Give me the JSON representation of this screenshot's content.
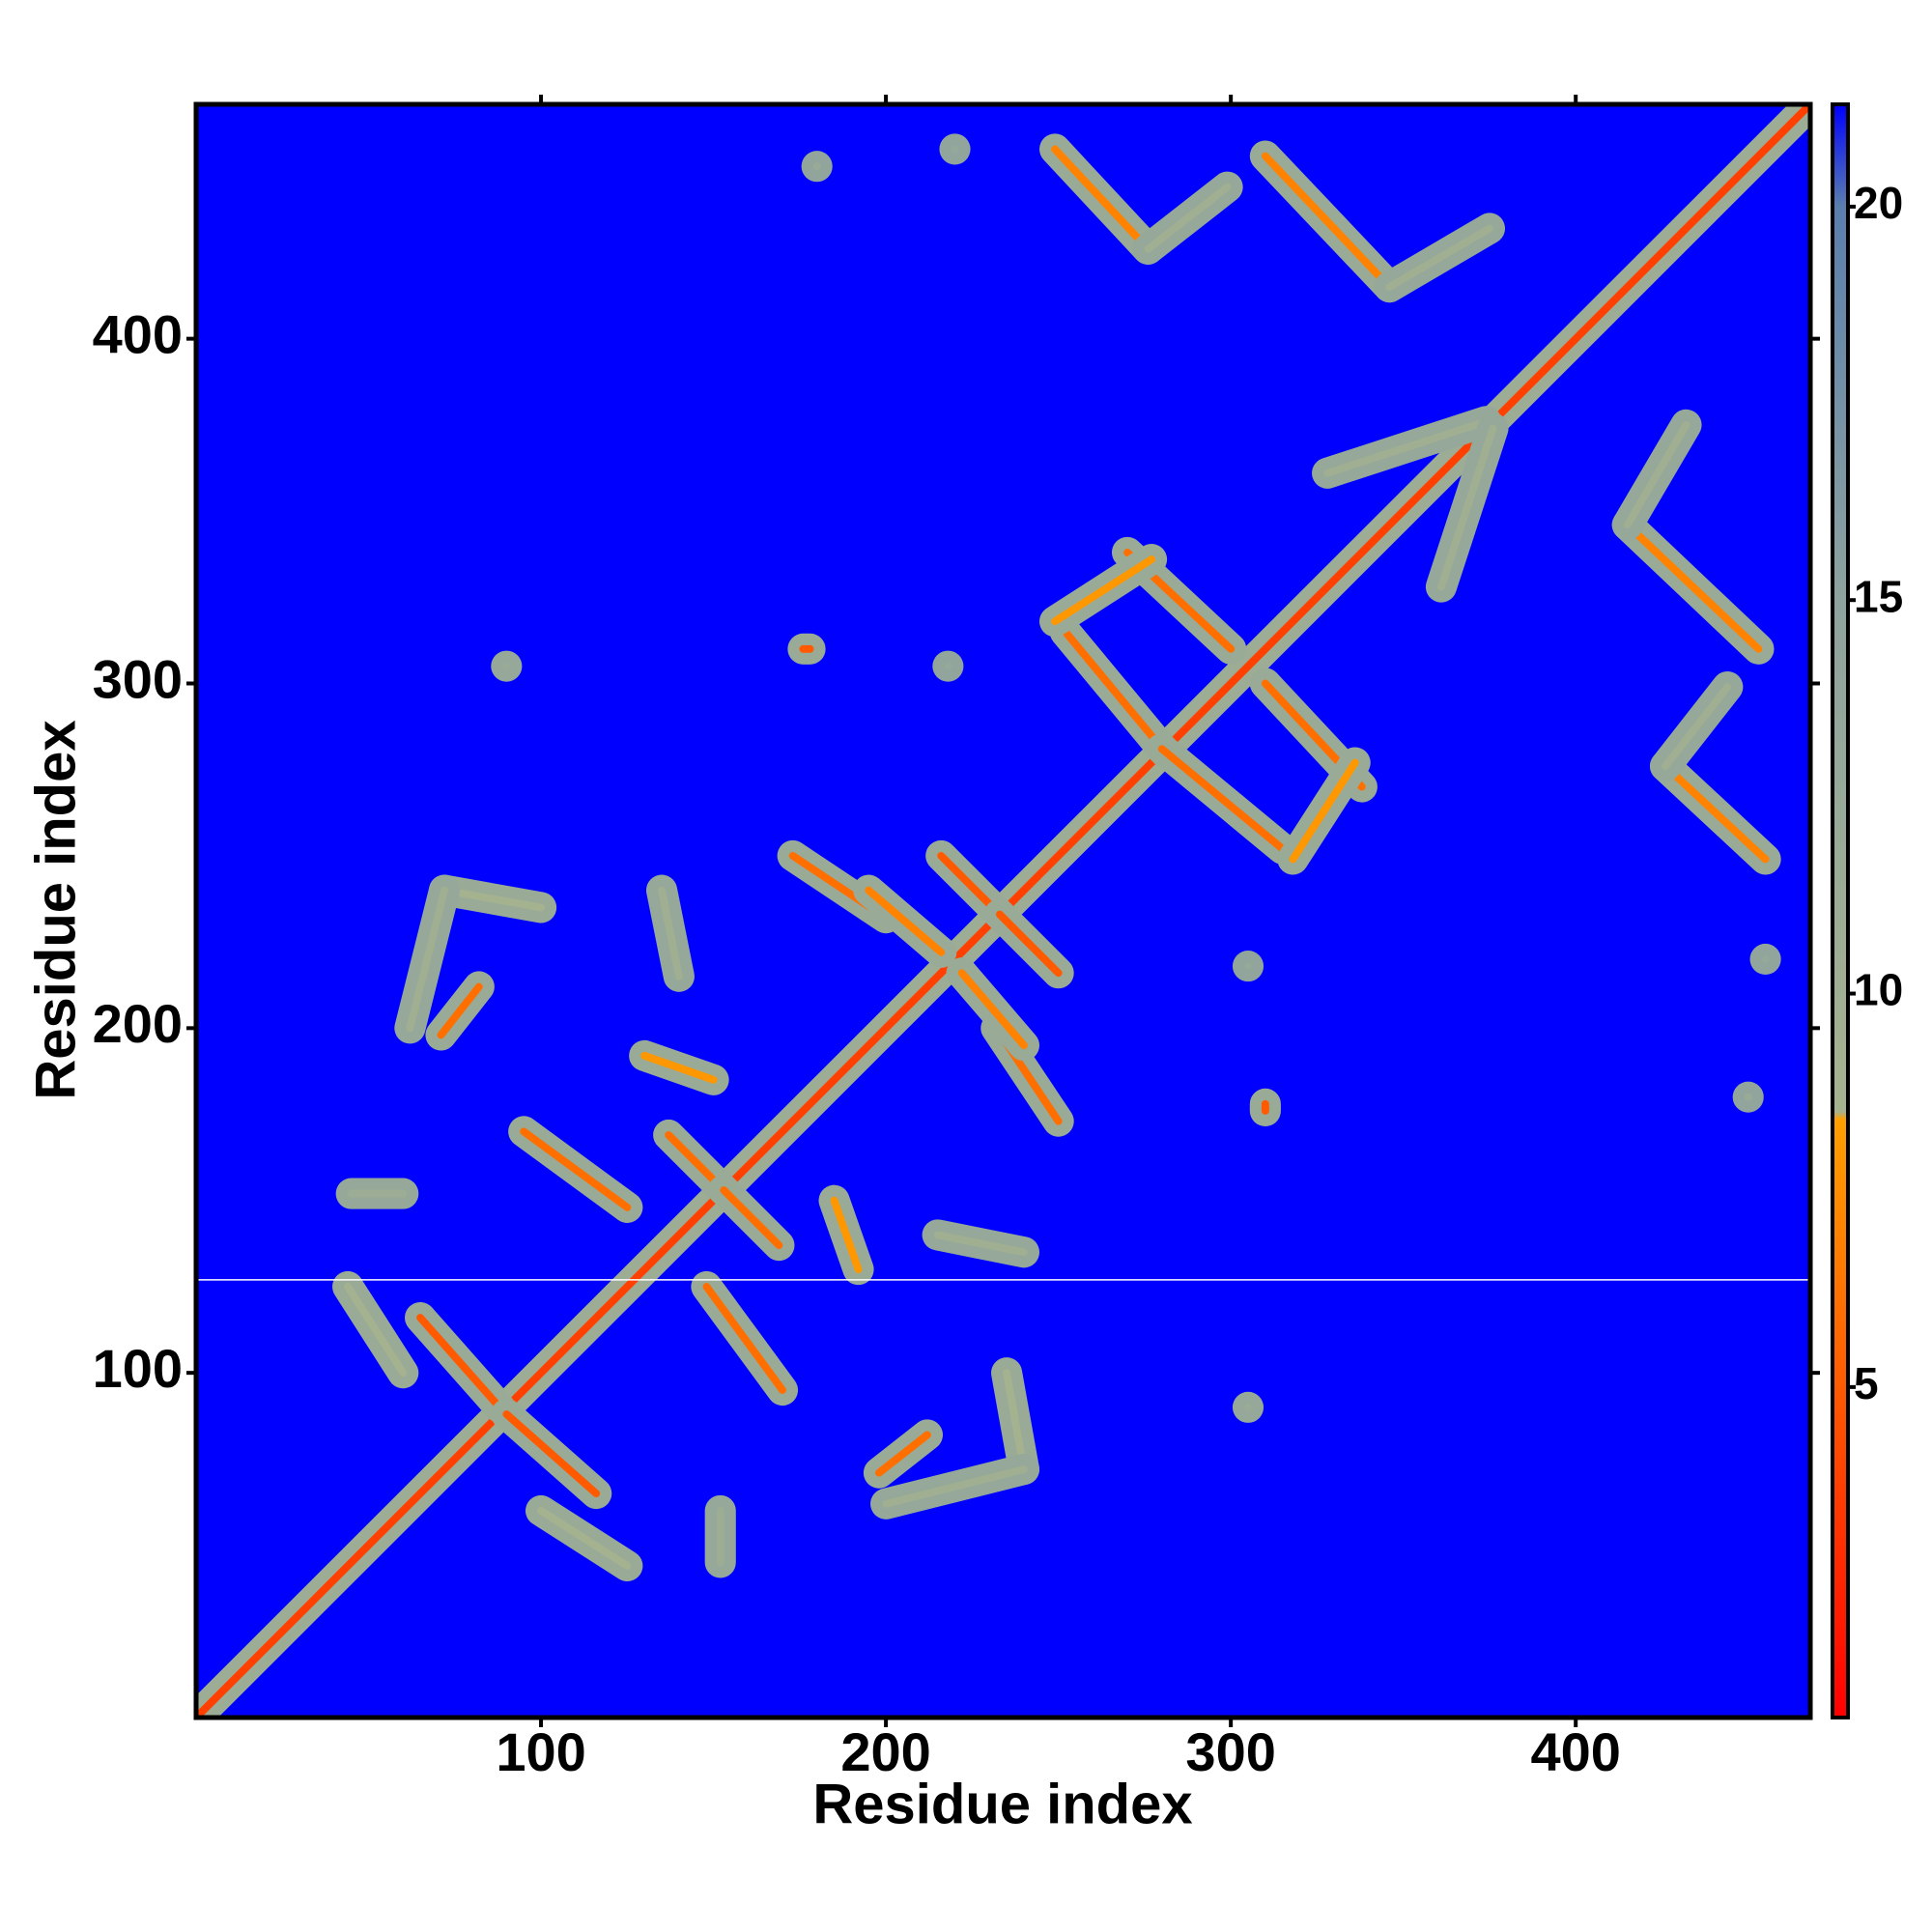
{
  "chart_data": {
    "type": "heatmap",
    "x_label": "Residue index",
    "y_label": "Residue index",
    "xlim": [
      0,
      468
    ],
    "ylim": [
      0,
      468
    ],
    "xticks": [
      100,
      200,
      300,
      400
    ],
    "yticks": [
      100,
      200,
      300,
      400
    ],
    "symmetric": true,
    "background_color": "#0000ff",
    "blank_rows": [
      127
    ],
    "colorbar": {
      "lim": [
        0.8,
        21.3
      ],
      "ticks": [
        5,
        10,
        15,
        20
      ],
      "stops": [
        {
          "value": 0.8,
          "color": "#ff0000"
        },
        {
          "value": 5,
          "color": "#ff5a00"
        },
        {
          "value": 8.4,
          "color": "#ffa000"
        },
        {
          "value": 8.5,
          "color": "#a6b38f"
        },
        {
          "value": 15,
          "color": "#8ea39e"
        },
        {
          "value": 20,
          "color": "#5a7fae"
        },
        {
          "value": 21.3,
          "color": "#0000ff"
        }
      ]
    },
    "contacts": [
      {
        "x": [
          1,
          468
        ],
        "y": [
          1,
          468
        ],
        "value": 3.8,
        "halo": 11
      },
      {
        "x": [
          65,
          88
        ],
        "y": [
          116,
          90
        ],
        "value": 5,
        "halo": 12
      },
      {
        "x": [
          44,
          60
        ],
        "y": [
          125,
          100
        ],
        "value": 9,
        "halo": 12
      },
      {
        "x": [
          71,
          82
        ],
        "y": [
          198,
          212
        ],
        "value": 6,
        "halo": 12
      },
      {
        "x": [
          72,
          100
        ],
        "y": [
          240,
          235
        ],
        "value": 9,
        "halo": 12
      },
      {
        "x": [
          62,
          72
        ],
        "y": [
          200,
          240
        ],
        "value": 10,
        "halo": 13
      },
      {
        "x": [
          95,
          125
        ],
        "y": [
          170,
          148
        ],
        "value": 6,
        "halo": 12
      },
      {
        "x": [
          45,
          60
        ],
        "y": [
          152,
          152
        ],
        "value": 11,
        "halo": 13
      },
      {
        "x": [
          137,
          153
        ],
        "y": [
          169,
          153
        ],
        "value": 6,
        "halo": 12
      },
      {
        "x": [
          135,
          140
        ],
        "y": [
          240,
          215
        ],
        "value": 10,
        "halo": 13
      },
      {
        "x": [
          130,
          150
        ],
        "y": [
          192,
          185
        ],
        "value": 8,
        "halo": 12
      },
      {
        "x": [
          173,
          200
        ],
        "y": [
          250,
          232
        ],
        "value": 6,
        "halo": 12
      },
      {
        "x": [
          195,
          216
        ],
        "y": [
          240,
          222
        ],
        "value": 7,
        "halo": 12
      },
      {
        "x": [
          216,
          233
        ],
        "y": [
          250,
          233
        ],
        "value": 5,
        "halo": 12
      },
      {
        "x": [
          176,
          178
        ],
        "y": [
          310,
          310
        ],
        "value": 5,
        "halo": 12
      },
      {
        "x": [
          90,
          90
        ],
        "y": [
          305,
          305
        ],
        "value": 12,
        "halo": 13
      },
      {
        "x": [
          218,
          218
        ],
        "y": [
          305,
          305
        ],
        "value": 13,
        "halo": 14
      },
      {
        "x": [
          252,
          281
        ],
        "y": [
          315,
          280
        ],
        "value": 6,
        "halo": 12
      },
      {
        "x": [
          270,
          300
        ],
        "y": [
          338,
          310
        ],
        "value": 6,
        "halo": 12
      },
      {
        "x": [
          249,
          277
        ],
        "y": [
          318,
          336
        ],
        "value": 8,
        "halo": 12
      },
      {
        "x": [
          249,
          276
        ],
        "y": [
          455,
          426
        ],
        "value": 7,
        "halo": 12
      },
      {
        "x": [
          276,
          299
        ],
        "y": [
          426,
          444
        ],
        "value": 10,
        "halo": 13
      },
      {
        "x": [
          310,
          346
        ],
        "y": [
          453,
          415
        ],
        "value": 7,
        "halo": 12
      },
      {
        "x": [
          346,
          375
        ],
        "y": [
          415,
          432
        ],
        "value": 10,
        "halo": 13
      },
      {
        "x": [
          328,
          374
        ],
        "y": [
          361,
          376
        ],
        "value": 10,
        "halo": 13
      },
      {
        "x": [
          180,
          180
        ],
        "y": [
          450,
          450
        ],
        "value": 12,
        "halo": 14
      },
      {
        "x": [
          220,
          220
        ],
        "y": [
          455,
          455
        ],
        "value": 13,
        "halo": 14
      }
    ]
  }
}
